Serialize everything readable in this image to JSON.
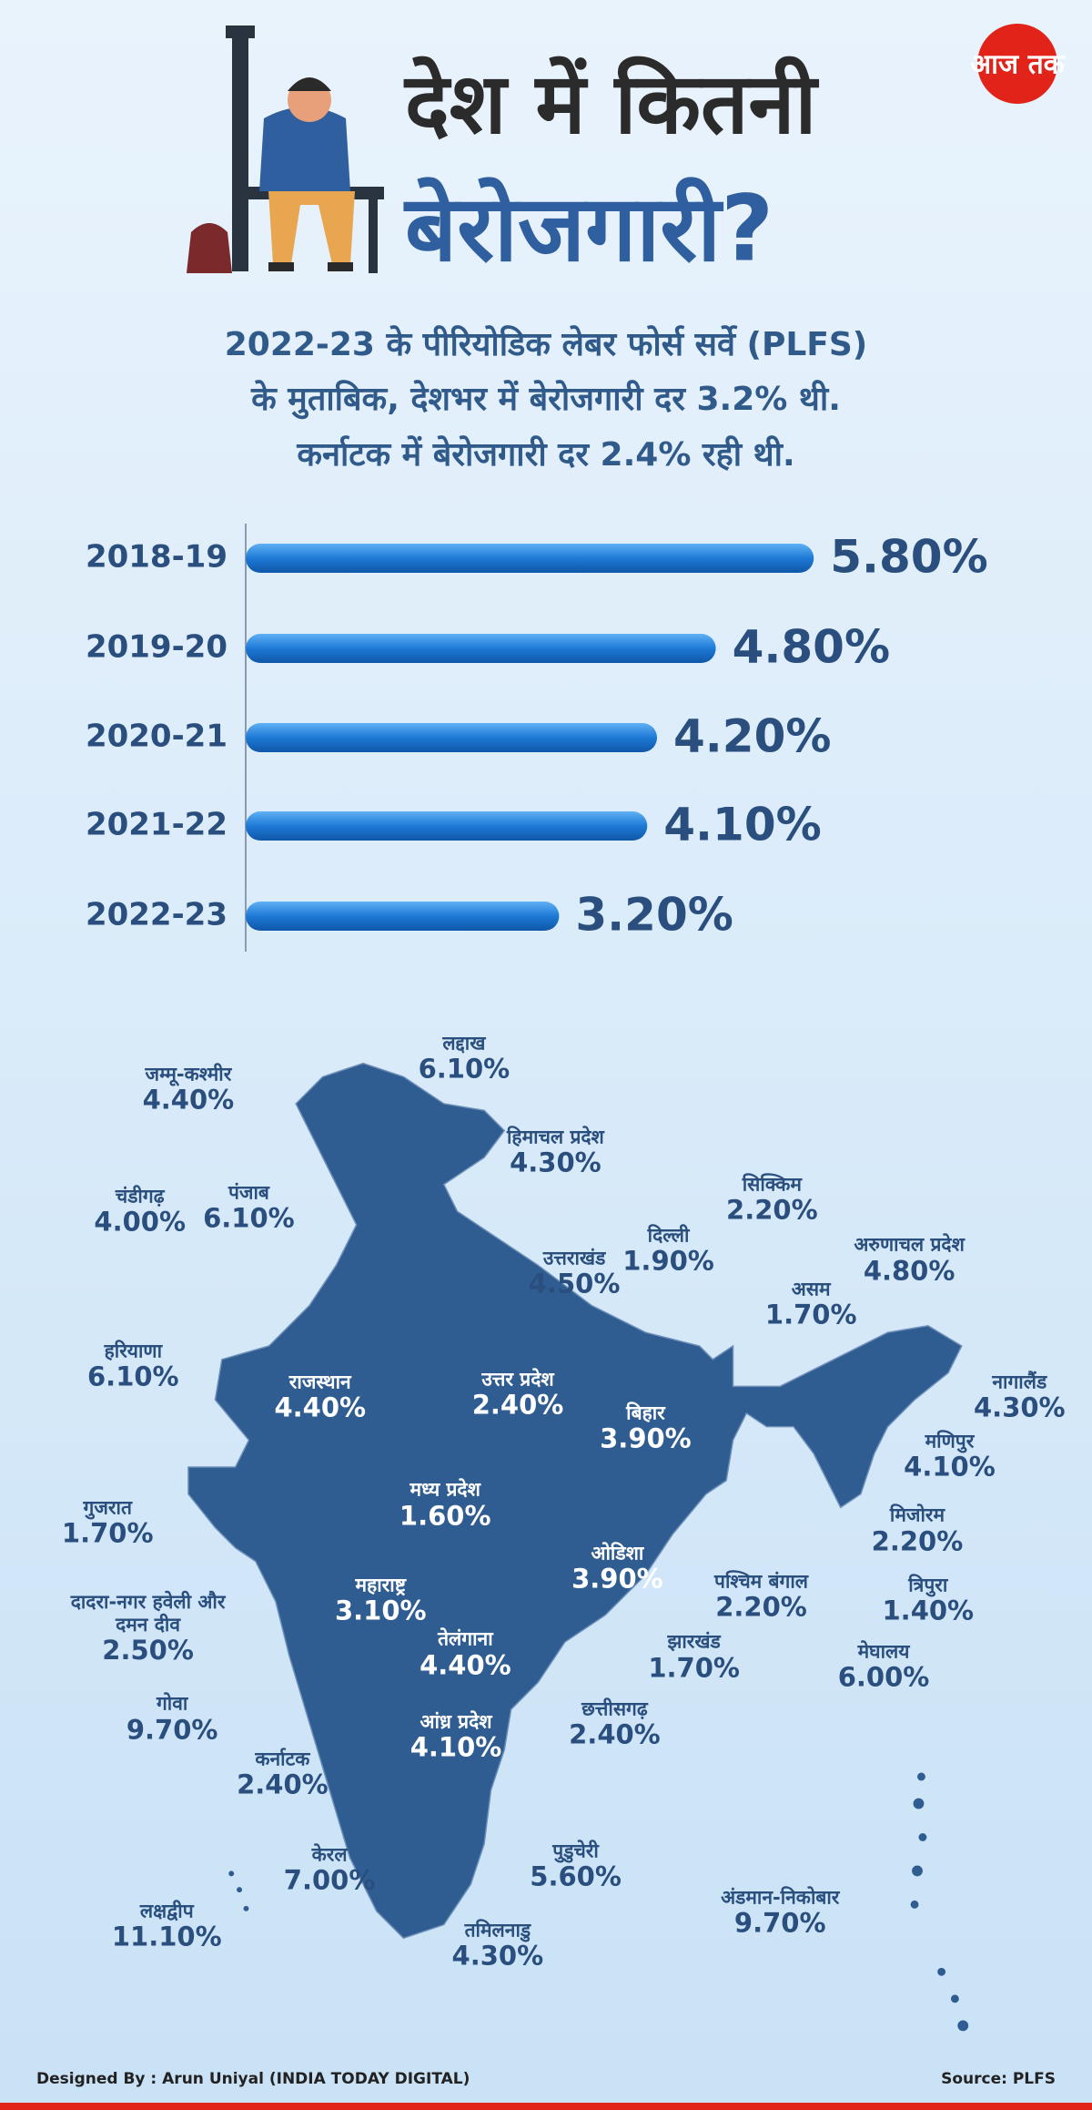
{
  "logo": "आज तक",
  "title": [
    "देश में कितनी",
    "बेरोजगारी?"
  ],
  "subtitle": [
    "2022-23 के पीरियोडिक लेबर फोर्स सर्वे (PLFS)",
    "के मुताबिक, देशभर में बेरोजगारी दर 3.2% थी.",
    "कर्नाटक में बेरोजगारी दर 2.4% रही थी."
  ],
  "chart_data": {
    "type": "bar",
    "orientation": "horizontal",
    "categories": [
      "2018-19",
      "2019-20",
      "2020-21",
      "2021-22",
      "2022-23"
    ],
    "values": [
      5.8,
      4.8,
      4.2,
      4.1,
      3.2
    ],
    "value_labels": [
      "5.80%",
      "4.80%",
      "4.20%",
      "4.10%",
      "3.20%"
    ],
    "color": "#1f7ad6",
    "xlim": [
      0,
      8
    ]
  },
  "map": {
    "regions": [
      {
        "name": "लद्दाख",
        "rate": "6.10%"
      },
      {
        "name": "जम्मू-कश्मीर",
        "rate": "4.40%"
      },
      {
        "name": "हिमाचल प्रदेश",
        "rate": "4.30%"
      },
      {
        "name": "सिक्किम",
        "rate": "2.20%"
      },
      {
        "name": "चंडीगढ़",
        "rate": "4.00%"
      },
      {
        "name": "पंजाब",
        "rate": "6.10%"
      },
      {
        "name": "दिल्ली",
        "rate": "1.90%"
      },
      {
        "name": "उत्तराखंड",
        "rate": "4.50%"
      },
      {
        "name": "अरुणाचल प्रदेश",
        "rate": "4.80%"
      },
      {
        "name": "असम",
        "rate": "1.70%"
      },
      {
        "name": "हरियाणा",
        "rate": "6.10%"
      },
      {
        "name": "राजस्थान",
        "rate": "4.40%"
      },
      {
        "name": "उत्तर प्रदेश",
        "rate": "2.40%"
      },
      {
        "name": "नागालैंड",
        "rate": "4.30%"
      },
      {
        "name": "बिहार",
        "rate": "3.90%"
      },
      {
        "name": "मणिपुर",
        "rate": "4.10%"
      },
      {
        "name": "मध्य प्रदेश",
        "rate": "1.60%"
      },
      {
        "name": "गुजरात",
        "rate": "1.70%"
      },
      {
        "name": "मिजोरम",
        "rate": "2.20%"
      },
      {
        "name": "ओडिशा",
        "rate": "3.90%"
      },
      {
        "name": "पश्चिम बंगाल",
        "rate": "2.20%"
      },
      {
        "name": "त्रिपुरा",
        "rate": "1.40%"
      },
      {
        "name": "दादरा-नगर हवेली और दमन दीव",
        "rate": "2.50%"
      },
      {
        "name": "महाराष्ट्र",
        "rate": "3.10%"
      },
      {
        "name": "तेलंगाना",
        "rate": "4.40%"
      },
      {
        "name": "झारखंड",
        "rate": "1.70%"
      },
      {
        "name": "मेघालय",
        "rate": "6.00%"
      },
      {
        "name": "गोवा",
        "rate": "9.70%"
      },
      {
        "name": "छत्तीसगढ़",
        "rate": "2.40%"
      },
      {
        "name": "आंध्र प्रदेश",
        "rate": "4.10%"
      },
      {
        "name": "कर्नाटक",
        "rate": "2.40%"
      },
      {
        "name": "केरल",
        "rate": "7.00%"
      },
      {
        "name": "पुडुचेरी",
        "rate": "5.60%"
      },
      {
        "name": "अंडमान-निकोबार",
        "rate": "9.70%"
      },
      {
        "name": "लक्षद्वीप",
        "rate": "11.10%"
      },
      {
        "name": "तमिलनाडु",
        "rate": "4.30%"
      }
    ]
  },
  "footer": {
    "credit": "Designed By : Arun Uniyal (INDIA TODAY DIGITAL)",
    "source": "Source:  PLFS"
  }
}
